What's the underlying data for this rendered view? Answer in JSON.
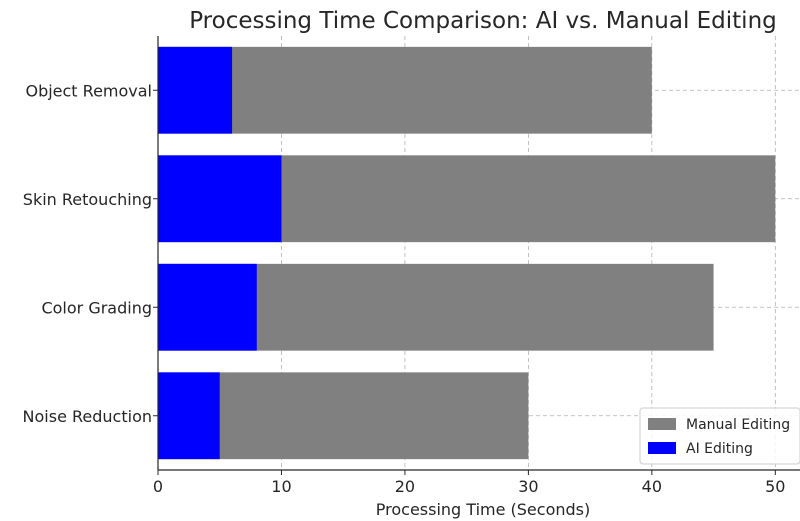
{
  "chart_data": {
    "type": "bar",
    "orientation": "horizontal",
    "title": "Processing Time Comparison: AI vs. Manual Editing",
    "xlabel": "Processing Time (Seconds)",
    "ylabel": "",
    "xlim": [
      0,
      52
    ],
    "xticks": [
      0,
      10,
      20,
      30,
      40,
      50
    ],
    "categories": [
      "Object Removal",
      "Skin Retouching",
      "Color Grading",
      "Noise Reduction"
    ],
    "series": [
      {
        "name": "Manual Editing",
        "color": "#808080",
        "values": [
          40,
          50,
          45,
          30
        ]
      },
      {
        "name": "AI Editing",
        "color": "#0000ff",
        "values": [
          6,
          10,
          8,
          5
        ]
      }
    ],
    "grid": true,
    "legend_position": "bottom-right"
  }
}
